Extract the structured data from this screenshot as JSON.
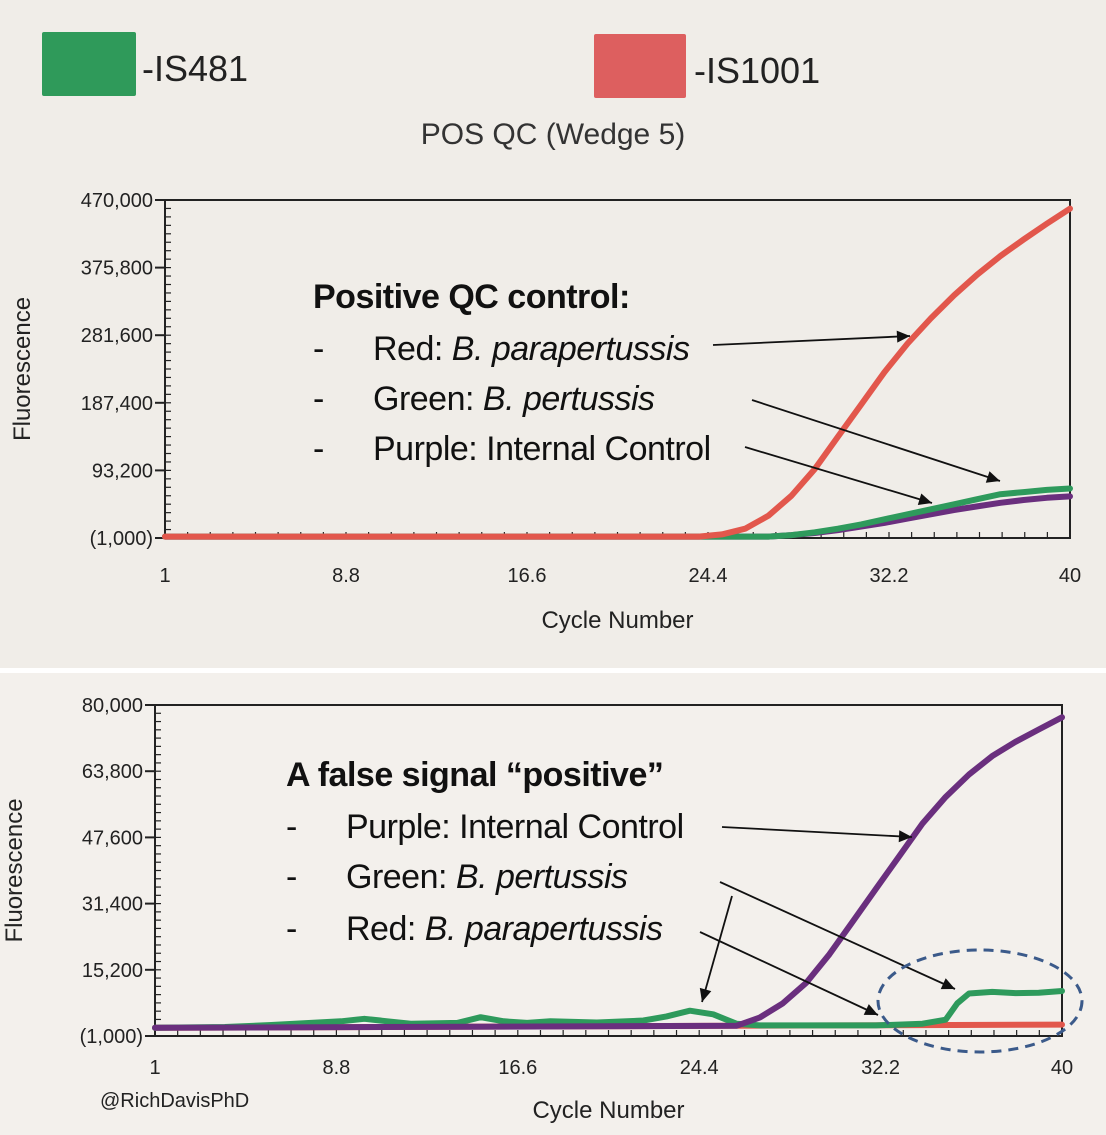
{
  "legend": [
    {
      "label": "-IS481",
      "color": "#2f9a5a"
    },
    {
      "label": "-IS1001",
      "color": "#dd5f5f"
    }
  ],
  "credit": "@RichDavisPhD",
  "colors": {
    "red": "#e2574c",
    "green": "#2e9a5c",
    "purple": "#6a2f7e",
    "annotation_arrow": "#111111",
    "highlight_ellipse": "#3b5a8a"
  },
  "annotations": {
    "top": {
      "title": "Positive QC control:",
      "lines": [
        {
          "dash": "-",
          "label": "Red:",
          "name": "B. parapertussis"
        },
        {
          "dash": "-",
          "label": "Green:",
          "name": "B. pertussis"
        },
        {
          "dash": "-",
          "label": "Purple: Internal Control",
          "name": ""
        }
      ]
    },
    "bottom": {
      "title": "A false signal “positive”",
      "lines": [
        {
          "dash": "-",
          "label": "Purple: Internal Control",
          "name": ""
        },
        {
          "dash": "-",
          "label": "Green:",
          "name": "B. pertussis"
        },
        {
          "dash": "-",
          "label": "Red:",
          "name": "B. parapertussis"
        }
      ]
    }
  },
  "chart_data": [
    {
      "type": "line",
      "title": "POS QC (Wedge 5)",
      "xlabel": "Cycle Number",
      "ylabel": "Fluorescence",
      "xlim": [
        1,
        40
      ],
      "ylim": [
        -1000,
        470000
      ],
      "x_ticks": [
        "1",
        "8.8",
        "16.6",
        "24.4",
        "32.2",
        "40"
      ],
      "y_ticks": [
        "(1,000)",
        "93,200",
        "187,400",
        "281,600",
        "375,800",
        "470,000"
      ],
      "series": [
        {
          "name": "IS1001",
          "color": "red",
          "x": [
            1,
            24,
            25,
            26,
            27,
            28,
            29,
            30,
            31,
            32,
            33,
            34,
            35,
            36,
            37,
            38,
            39,
            40
          ],
          "y": [
            1000,
            1000,
            4000,
            12000,
            30000,
            58000,
            95000,
            140000,
            185000,
            230000,
            270000,
            305000,
            337000,
            366000,
            392000,
            415000,
            437000,
            458000
          ]
        },
        {
          "name": "IS481",
          "color": "green",
          "x": [
            1,
            27,
            28,
            29,
            30,
            31,
            32,
            33,
            34,
            35,
            36,
            37,
            38,
            39,
            40
          ],
          "y": [
            1000,
            1000,
            3000,
            7000,
            12000,
            18000,
            25000,
            32000,
            39000,
            46000,
            53000,
            60000,
            63000,
            66000,
            68000
          ]
        },
        {
          "name": "Internal Control",
          "color": "purple",
          "x": [
            1,
            27,
            28,
            29,
            30,
            31,
            32,
            33,
            34,
            35,
            36,
            37,
            38,
            39,
            40
          ],
          "y": [
            1000,
            1000,
            3000,
            6000,
            10000,
            15000,
            20000,
            26000,
            32000,
            38000,
            43000,
            48000,
            52000,
            55000,
            57000
          ]
        }
      ]
    },
    {
      "type": "line",
      "title": "",
      "xlabel": "Cycle Number",
      "ylabel": "Fluorescence",
      "xlim": [
        1,
        40
      ],
      "ylim": [
        -1000,
        80000
      ],
      "x_ticks": [
        "1",
        "8.8",
        "16.6",
        "24.4",
        "32.2",
        "40"
      ],
      "y_ticks": [
        "(1,000)",
        "15,200",
        "31,400",
        "47,600",
        "63,800",
        "80,000"
      ],
      "series": [
        {
          "name": "Internal Control",
          "color": "purple",
          "x": [
            1,
            26,
            27,
            28,
            29,
            30,
            31,
            32,
            33,
            34,
            35,
            36,
            37,
            38,
            39,
            40
          ],
          "y": [
            1000,
            1500,
            3500,
            7000,
            12000,
            19000,
            27000,
            35000,
            43000,
            51000,
            57500,
            63000,
            67500,
            71000,
            74000,
            77000
          ]
        },
        {
          "name": "IS481",
          "color": "green",
          "x": [
            1,
            4,
            6,
            9,
            10,
            11,
            12,
            14,
            15,
            16,
            17,
            18,
            20,
            22,
            23,
            24,
            25,
            26,
            27,
            28,
            29,
            30,
            31,
            32,
            33,
            34,
            35,
            35.5,
            36,
            37,
            38,
            39,
            40
          ],
          "y": [
            1000,
            1200,
            1700,
            2600,
            3200,
            2600,
            2000,
            2200,
            3600,
            2600,
            2200,
            2600,
            2300,
            2800,
            3800,
            5200,
            4300,
            2000,
            1600,
            1600,
            1600,
            1600,
            1600,
            1600,
            1800,
            2000,
            3000,
            7000,
            9400,
            9800,
            9500,
            9600,
            10000
          ]
        },
        {
          "name": "IS1001",
          "color": "red",
          "x": [
            1,
            40
          ],
          "y": [
            1000,
            1800
          ]
        }
      ]
    }
  ]
}
